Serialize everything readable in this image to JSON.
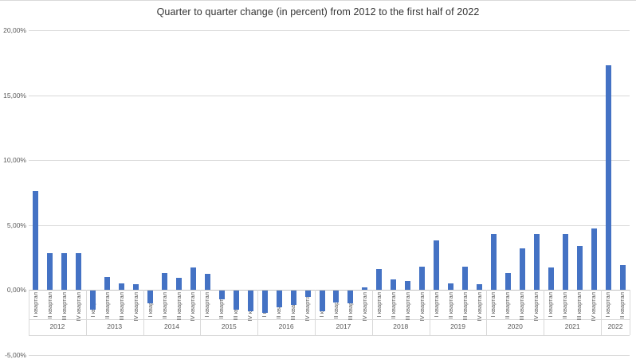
{
  "chart_data": {
    "type": "bar",
    "title": "Quarter to quarter change (in percent) from 2012 to the first half of 2022",
    "xlabel": "",
    "ylabel": "",
    "legend": "none",
    "grid": true,
    "bar_color": "#4472C4",
    "gridline_color": "#D9D9D9",
    "axis_line_color": "#C2C2C2",
    "label_color": "#595959",
    "y_axis": {
      "min": -5,
      "max": 20,
      "step": 5,
      "ticks": [
        20,
        15,
        10,
        5,
        0,
        -5
      ],
      "tick_labels": [
        "20,00%",
        "15,00%",
        "10,00%",
        "5,00%",
        "0,00%",
        "-5,00%"
      ]
    },
    "quarter_labels": [
      "I квартал",
      "II квартал",
      "III квартал",
      "IV квартал"
    ],
    "groups": [
      {
        "year": "2012",
        "values": [
          7.6,
          2.8,
          2.8,
          2.8
        ]
      },
      {
        "year": "2013",
        "values": [
          -1.5,
          1.0,
          0.5,
          0.4
        ]
      },
      {
        "year": "2014",
        "values": [
          -1.0,
          1.3,
          0.9,
          1.7
        ]
      },
      {
        "year": "2015",
        "values": [
          1.2,
          -0.7,
          -1.5,
          -1.6
        ]
      },
      {
        "year": "2016",
        "values": [
          -1.7,
          -1.3,
          -1.1,
          -0.5
        ]
      },
      {
        "year": "2017",
        "values": [
          -1.6,
          -0.9,
          -1.0,
          0.2
        ]
      },
      {
        "year": "2018",
        "values": [
          1.6,
          0.8,
          0.7,
          1.8
        ]
      },
      {
        "year": "2019",
        "values": [
          3.8,
          0.5,
          1.8,
          0.4
        ]
      },
      {
        "year": "2020",
        "values": [
          4.3,
          1.3,
          3.2,
          4.3
        ]
      },
      {
        "year": "2021",
        "values": [
          1.7,
          4.3,
          3.4,
          4.7
        ]
      },
      {
        "year": "2022",
        "values": [
          17.3,
          1.9
        ]
      }
    ]
  }
}
